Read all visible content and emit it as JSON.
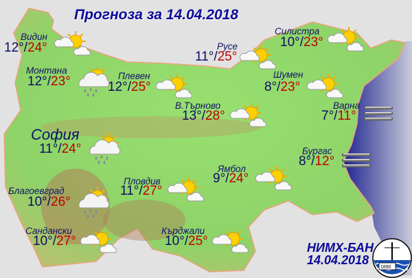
{
  "title": "Прогноза за 14.04.2018",
  "colors": {
    "min_temp": "#0c0c66",
    "max_temp": "#c00000",
    "title": "#0a0a9a",
    "land": "#8fd86a",
    "sea": "#3a3f9a",
    "background": "#e2e2e2"
  },
  "cities": [
    {
      "name": "Видин",
      "min": "12°",
      "max": "24°",
      "icon": "partly-cloudy"
    },
    {
      "name": "Монтана",
      "min": "12°",
      "max": "23°",
      "icon": "cloud-rain"
    },
    {
      "name": "Плевен",
      "min": "12°",
      "max": "25°",
      "icon": "partly-cloudy"
    },
    {
      "name": "Русе",
      "min": "11°",
      "max": "25°",
      "icon": "partly-cloudy"
    },
    {
      "name": "Силистра",
      "min": "10°",
      "max": "23°",
      "icon": "partly-cloudy"
    },
    {
      "name": "Шумен",
      "min": "8°",
      "max": "23°",
      "icon": "partly-cloudy"
    },
    {
      "name": "В.Търново",
      "min": "13°",
      "max": "28°",
      "icon": "partly-cloudy"
    },
    {
      "name": "Варна",
      "min": "7°",
      "max": "11°",
      "icon": "fog"
    },
    {
      "name": "София",
      "min": "11°",
      "max": "24°",
      "icon": "cloud-rain"
    },
    {
      "name": "Бургас",
      "min": "8°",
      "max": "12°",
      "icon": "fog"
    },
    {
      "name": "Ямбол",
      "min": "9°",
      "max": "24°",
      "icon": "partly-cloudy"
    },
    {
      "name": "Пловдив",
      "min": "11°",
      "max": "27°",
      "icon": "partly-cloudy"
    },
    {
      "name": "Благоевград",
      "min": "10°",
      "max": "26°",
      "icon": "cloud-rain"
    },
    {
      "name": "Сандански",
      "min": "10°",
      "max": "27°",
      "icon": "partly-cloudy"
    },
    {
      "name": "Кърджали",
      "min": "10°",
      "max": "25°",
      "icon": "partly-cloudy"
    }
  ],
  "footer": {
    "org": "НИМХ-БАН",
    "date": "14.04.2018"
  },
  "logo": {
    "text": "1890",
    "icon": "nimh-logo"
  }
}
